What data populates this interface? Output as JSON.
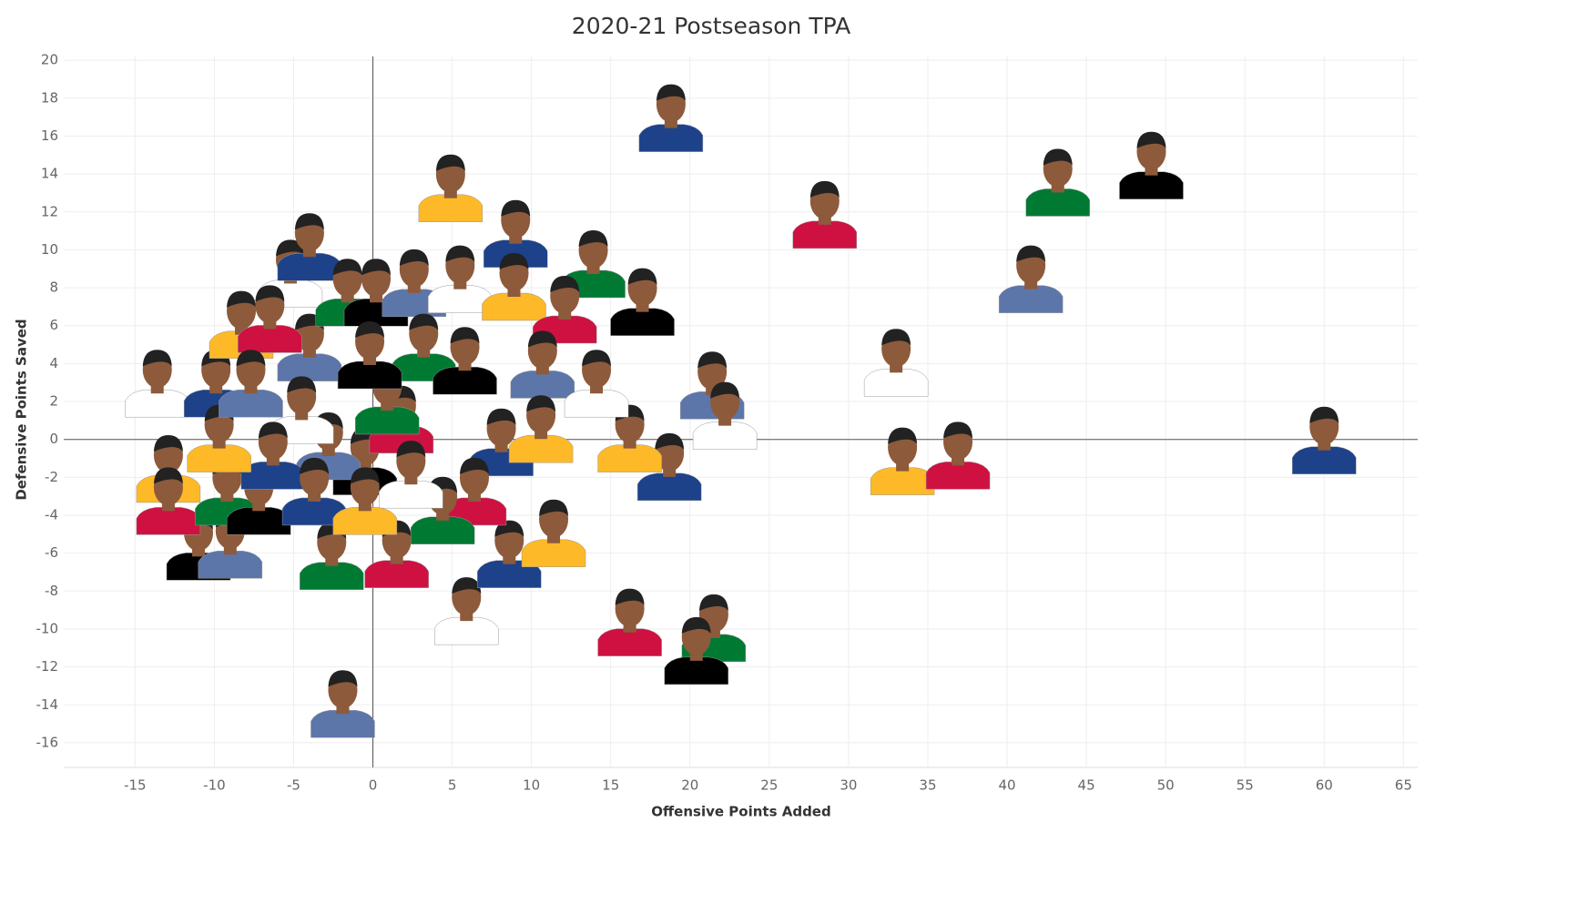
{
  "chart_data": {
    "type": "scatter",
    "title": "2020-21 Postseason TPA",
    "x_label": "Offensive Points Added",
    "y_label": "Defensive Points Saved",
    "series": [
      {
        "palette": [
          "#1d428a",
          "#fdb927",
          "#ce1141",
          "#007a33",
          "#000000",
          "#5d76a9",
          "#ffffff"
        ],
        "x": [
          18.8,
          4.9,
          28.5,
          43.2,
          49.1,
          41.5,
          33.0,
          60.0,
          33.4,
          36.9,
          13.9,
          17.0,
          21.4,
          22.2,
          18.7,
          16.2,
          16.2,
          21.5,
          20.4,
          -1.9,
          5.9,
          8.6,
          11.4,
          1.5,
          -2.6,
          -11.0,
          -9.0,
          -13.6,
          -9.9,
          -12.9,
          -12.9,
          -9.2,
          -7.2,
          -4.0,
          -5.2,
          -4.0,
          -8.3,
          -6.5,
          -1.6,
          0.2,
          2.6,
          5.5,
          9.0,
          8.9,
          12.1,
          3.2,
          5.8,
          10.7,
          14.1,
          8.1,
          10.6,
          6.4,
          4.4,
          -0.5,
          -2.8,
          -4.5,
          -6.3,
          -9.7,
          1.8,
          0.9,
          -0.2,
          -7.7,
          2.4,
          -3.7,
          -0.5
        ],
        "values": [
          17.0,
          13.3,
          11.9,
          13.6,
          14.5,
          8.5,
          4.1,
          0.0,
          -1.1,
          -0.8,
          9.3,
          7.3,
          2.9,
          1.3,
          -1.4,
          0.1,
          -9.6,
          -9.9,
          -11.1,
          -13.9,
          -9.0,
          -6.0,
          -4.9,
          -6.0,
          -6.1,
          -5.6,
          -5.5,
          3.0,
          3.0,
          -1.5,
          -3.2,
          -2.7,
          -3.2,
          4.9,
          8.8,
          10.2,
          6.1,
          6.4,
          7.8,
          7.8,
          8.3,
          8.5,
          10.9,
          8.1,
          6.9,
          4.9,
          4.2,
          4.0,
          3.0,
          -0.1,
          0.6,
          -2.7,
          -3.7,
          -1.1,
          -0.3,
          1.6,
          -0.8,
          0.1,
          1.1,
          2.1,
          4.5,
          3.0,
          -1.8,
          -2.7,
          -3.2
        ]
      }
    ],
    "xlim": [
      -19.5,
      65.9
    ],
    "ylim": [
      -17.3,
      20.2
    ],
    "xticks": [
      -15,
      -10,
      -5,
      0,
      5,
      10,
      15,
      20,
      25,
      30,
      35,
      40,
      45,
      50,
      55,
      60,
      65
    ],
    "yticks": [
      -16,
      -14,
      -12,
      -10,
      -8,
      -6,
      -4,
      -2,
      0,
      2,
      4,
      6,
      8,
      10,
      12,
      14,
      16,
      18,
      20
    ],
    "grid": true,
    "zero_lines": true
  }
}
